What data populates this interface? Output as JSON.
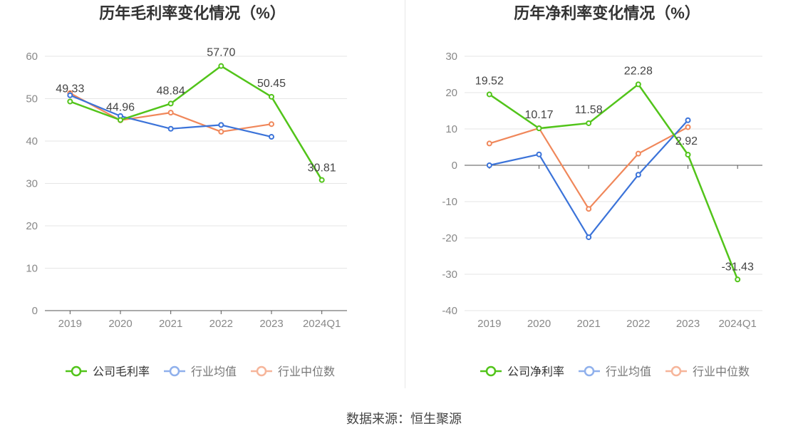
{
  "source_label": "数据来源：恒生聚源",
  "chart_data": [
    {
      "type": "line",
      "title": "历年毛利率变化情况（%）",
      "categories": [
        "2019",
        "2020",
        "2021",
        "2022",
        "2023",
        "2024Q1"
      ],
      "ylim": [
        0,
        60
      ],
      "yticks": [
        0,
        10,
        20,
        30,
        40,
        50,
        60
      ],
      "grid": true,
      "legend_position": "bottom",
      "series": [
        {
          "name": "公司毛利率",
          "color": "#52c41a",
          "values": [
            49.33,
            44.96,
            48.84,
            57.7,
            50.45,
            30.81
          ],
          "labels": [
            "49.33",
            "44.96",
            "48.84",
            "57.70",
            "50.45",
            "30.81"
          ]
        },
        {
          "name": "行业均值",
          "color": "#3b73d9",
          "values": [
            50.8,
            45.9,
            42.9,
            43.8,
            41.0,
            null
          ]
        },
        {
          "name": "行业中位数",
          "color": "#f0875a",
          "values": [
            51.3,
            44.9,
            46.7,
            42.2,
            44.0,
            null
          ]
        }
      ]
    },
    {
      "type": "line",
      "title": "历年净利率变化情况（%）",
      "categories": [
        "2019",
        "2020",
        "2021",
        "2022",
        "2023",
        "2024Q1"
      ],
      "ylim": [
        -40,
        30
      ],
      "yticks": [
        -40,
        -30,
        -20,
        -10,
        0,
        10,
        20,
        30
      ],
      "grid": true,
      "legend_position": "bottom",
      "series": [
        {
          "name": "公司净利率",
          "color": "#52c41a",
          "values": [
            19.52,
            10.17,
            11.58,
            22.28,
            2.92,
            -31.43
          ],
          "labels": [
            "19.52",
            "10.17",
            "11.58",
            "22.28",
            "2.92",
            "-31.43"
          ]
        },
        {
          "name": "行业均值",
          "color": "#3b73d9",
          "values": [
            0.0,
            3.0,
            -19.8,
            -2.6,
            12.4,
            null
          ]
        },
        {
          "name": "行业中位数",
          "color": "#f0875a",
          "values": [
            6.0,
            10.2,
            -12.0,
            3.2,
            10.5,
            null
          ]
        }
      ]
    }
  ]
}
